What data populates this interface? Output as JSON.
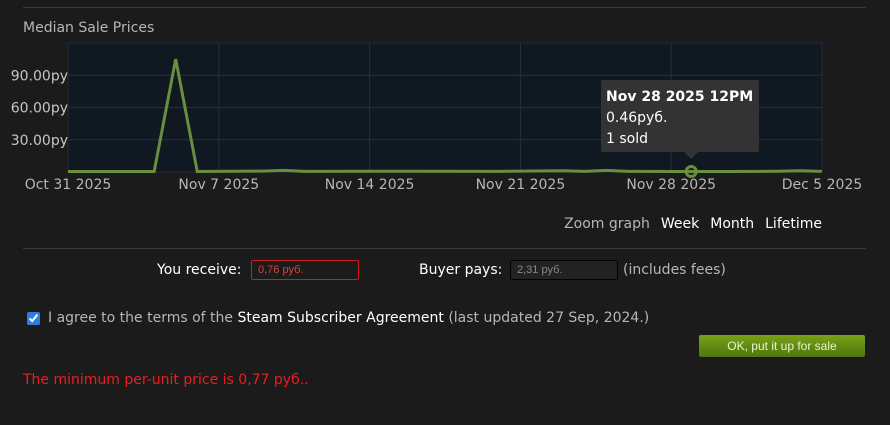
{
  "chart_data": {
    "type": "line",
    "title": "Median Sale Prices",
    "x_tick_labels": [
      "Oct 31 2025",
      "Nov 7 2025",
      "Nov 14 2025",
      "Nov 21 2025",
      "Nov 28 2025",
      "Dec 5 2025"
    ],
    "y_tick_labels": [
      "90.00py",
      "60.00py",
      "30.00py"
    ],
    "y_ticks": [
      90,
      60,
      30
    ],
    "ylim": [
      0,
      120
    ],
    "xlim": [
      "2025-10-31",
      "2025-12-05"
    ],
    "grid": true,
    "series": [
      {
        "color": "#688f3e",
        "points": [
          [
            "2025-10-31",
            0.5
          ],
          [
            "2025-11-03",
            0.5
          ],
          [
            "2025-11-04",
            0.5
          ],
          [
            "2025-11-05",
            105
          ],
          [
            "2025-11-06",
            0.5
          ],
          [
            "2025-11-09",
            0.8
          ],
          [
            "2025-11-10",
            1.5
          ],
          [
            "2025-11-11",
            0.6
          ],
          [
            "2025-11-16",
            0.7
          ],
          [
            "2025-11-20",
            0.6
          ],
          [
            "2025-11-23",
            1.2
          ],
          [
            "2025-11-24",
            0.6
          ],
          [
            "2025-11-25",
            1.5
          ],
          [
            "2025-11-26",
            0.6
          ],
          [
            "2025-11-28",
            0.46
          ],
          [
            "2025-12-01",
            0.5
          ],
          [
            "2025-12-03",
            0.7
          ],
          [
            "2025-12-04",
            1.2
          ],
          [
            "2025-12-05",
            0.6
          ]
        ]
      }
    ],
    "tooltip": {
      "date": "Nov 28 2025 12PM",
      "price": "0.46руб.",
      "sold": "1 sold"
    },
    "highlight_point": [
      "2025-11-28",
      0.46
    ]
  },
  "zoom": {
    "label": "Zoom graph",
    "options": [
      "Week",
      "Month",
      "Lifetime"
    ]
  },
  "form": {
    "receive_label": "You receive:",
    "receive_value": "0,76 руб.",
    "pays_label": "Buyer pays:",
    "pays_value": "2,31 руб.",
    "fees_note": "(includes fees)",
    "agree_prefix": "I agree to the terms of the",
    "agree_link": "Steam Subscriber Agreement",
    "agree_suffix": "(last updated 27 Sep, 2024.)",
    "agree_checked": true,
    "submit_label": "OK, put it up for sale",
    "error": "The minimum per-unit price is 0,77 руб.."
  }
}
